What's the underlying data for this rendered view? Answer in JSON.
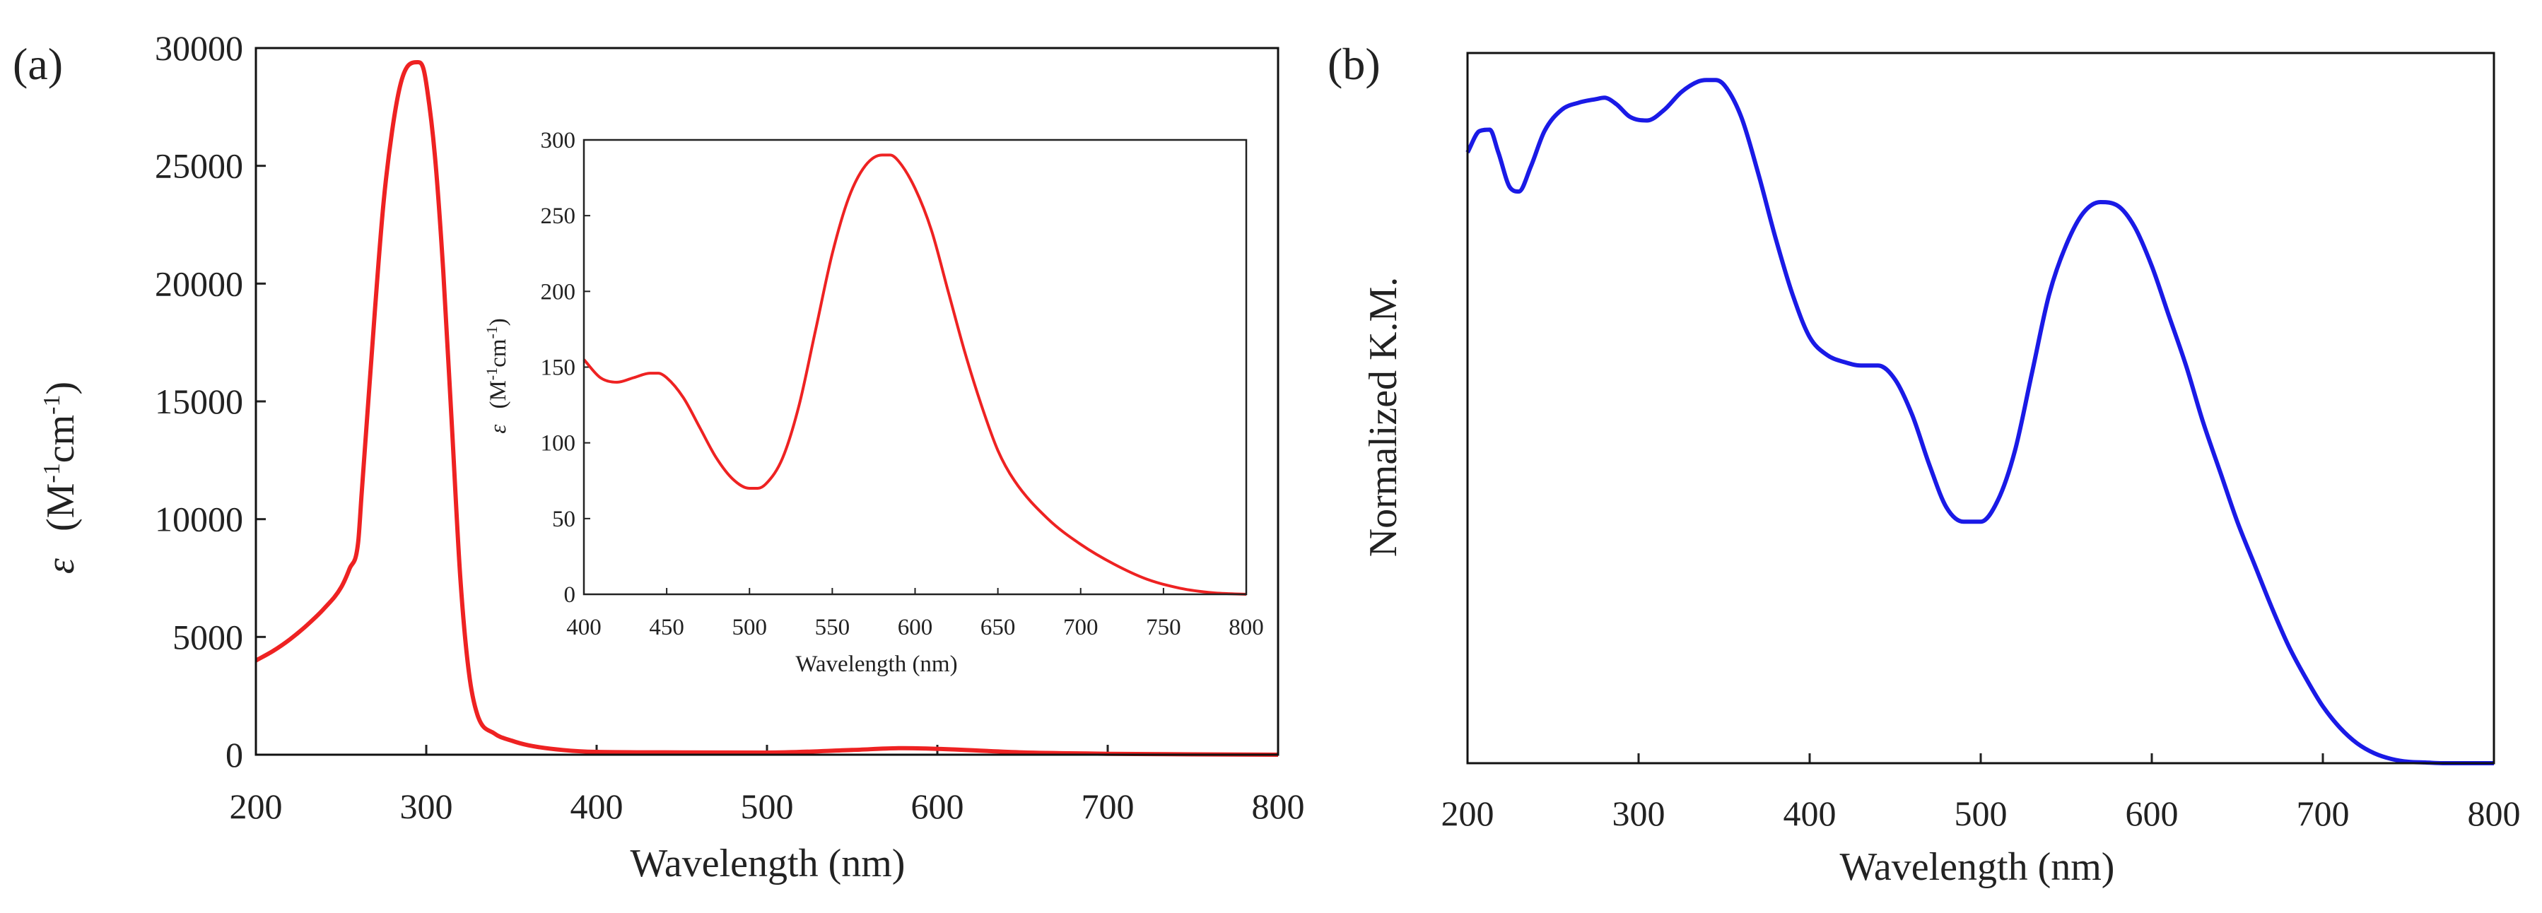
{
  "figure": {
    "panel_a_label": "(a)",
    "panel_b_label": "(b)"
  },
  "chart_data": [
    {
      "id": "panel_a_main",
      "type": "line",
      "title": "",
      "xlabel": "Wavelength (nm)",
      "ylabel_symbol": "ε",
      "ylabel": "(M-1cm-1)",
      "ylabel_unit_M": "M",
      "ylabel_unit_exp1": "-1",
      "ylabel_unit_cm": "cm",
      "ylabel_unit_exp2": "-1",
      "xlim": [
        200,
        800
      ],
      "ylim": [
        0,
        30000
      ],
      "xticks": [
        200,
        300,
        400,
        500,
        600,
        700,
        800
      ],
      "yticks": [
        0,
        5000,
        10000,
        15000,
        20000,
        25000,
        30000
      ],
      "color": "#ee2222",
      "series": [
        {
          "name": "epsilon",
          "x": [
            200,
            210,
            220,
            230,
            240,
            250,
            255,
            260,
            262,
            265,
            270,
            275,
            280,
            285,
            290,
            295,
            298,
            300,
            305,
            310,
            315,
            320,
            325,
            330,
            340,
            350,
            360,
            380,
            400,
            450,
            500,
            550,
            580,
            600,
            650,
            700,
            750,
            800
          ],
          "y": [
            4000,
            4400,
            4900,
            5500,
            6200,
            7100,
            7900,
            9000,
            11000,
            14000,
            19000,
            23500,
            26500,
            28500,
            29300,
            29400,
            29200,
            28500,
            25500,
            20500,
            14000,
            7500,
            3500,
            1700,
            900,
            600,
            400,
            200,
            120,
            100,
            90,
            200,
            280,
            250,
            100,
            40,
            15,
            0
          ]
        }
      ]
    },
    {
      "id": "panel_a_inset",
      "type": "line",
      "title": "",
      "xlabel": "Wavelength (nm)",
      "ylabel_symbol": "ε",
      "ylabel_unit_M": "M",
      "ylabel_unit_exp1": "-1",
      "ylabel_unit_cm": "cm",
      "ylabel_unit_exp2": "-1",
      "xlim": [
        400,
        800
      ],
      "ylim": [
        0,
        300
      ],
      "xticks": [
        400,
        450,
        500,
        550,
        600,
        650,
        700,
        750,
        800
      ],
      "yticks": [
        0,
        50,
        100,
        150,
        200,
        250,
        300
      ],
      "color": "#ee2222",
      "series": [
        {
          "name": "epsilon_visible",
          "x": [
            400,
            410,
            420,
            430,
            440,
            445,
            450,
            460,
            470,
            480,
            490,
            500,
            505,
            510,
            520,
            530,
            540,
            550,
            560,
            570,
            580,
            585,
            590,
            600,
            610,
            620,
            630,
            640,
            650,
            660,
            680,
            700,
            720,
            740,
            760,
            780,
            800
          ],
          "y": [
            155,
            143,
            140,
            143,
            146,
            146,
            143,
            130,
            110,
            90,
            76,
            70,
            70,
            73,
            90,
            125,
            175,
            225,
            262,
            283,
            290,
            290,
            286,
            268,
            240,
            200,
            160,
            125,
            95,
            75,
            50,
            33,
            20,
            10,
            4,
            1,
            0
          ]
        }
      ]
    },
    {
      "id": "panel_b",
      "type": "line",
      "title": "",
      "xlabel": "Wavelength (nm)",
      "ylabel": "Normalized K.M.",
      "xlim": [
        200,
        800
      ],
      "ylim": [
        0,
        1
      ],
      "xticks": [
        200,
        300,
        400,
        500,
        600,
        700,
        800
      ],
      "yticks": [],
      "color": "#1a1ae6",
      "series": [
        {
          "name": "normalized_km",
          "x": [
            200,
            207,
            213,
            218,
            225,
            230,
            237,
            245,
            255,
            265,
            275,
            280,
            287,
            295,
            305,
            315,
            325,
            335,
            340,
            345,
            350,
            360,
            370,
            380,
            390,
            400,
            410,
            420,
            430,
            440,
            450,
            460,
            470,
            480,
            490,
            500,
            510,
            520,
            530,
            540,
            550,
            560,
            570,
            580,
            590,
            600,
            610,
            620,
            630,
            640,
            650,
            660,
            670,
            680,
            690,
            700,
            710,
            720,
            730,
            740,
            750,
            760,
            770,
            780,
            790,
            800
          ],
          "y": [
            0.86,
            0.89,
            0.892,
            0.86,
            0.81,
            0.805,
            0.84,
            0.89,
            0.92,
            0.93,
            0.935,
            0.937,
            0.928,
            0.91,
            0.905,
            0.92,
            0.945,
            0.96,
            0.962,
            0.962,
            0.955,
            0.91,
            0.83,
            0.74,
            0.66,
            0.6,
            0.575,
            0.565,
            0.56,
            0.56,
            0.54,
            0.49,
            0.42,
            0.36,
            0.34,
            0.34,
            0.37,
            0.44,
            0.55,
            0.66,
            0.73,
            0.775,
            0.79,
            0.785,
            0.755,
            0.7,
            0.63,
            0.56,
            0.48,
            0.41,
            0.34,
            0.28,
            0.22,
            0.165,
            0.12,
            0.08,
            0.05,
            0.028,
            0.014,
            0.006,
            0.002,
            0.001,
            0.0,
            0.0,
            0.0,
            0.0
          ]
        }
      ]
    }
  ]
}
